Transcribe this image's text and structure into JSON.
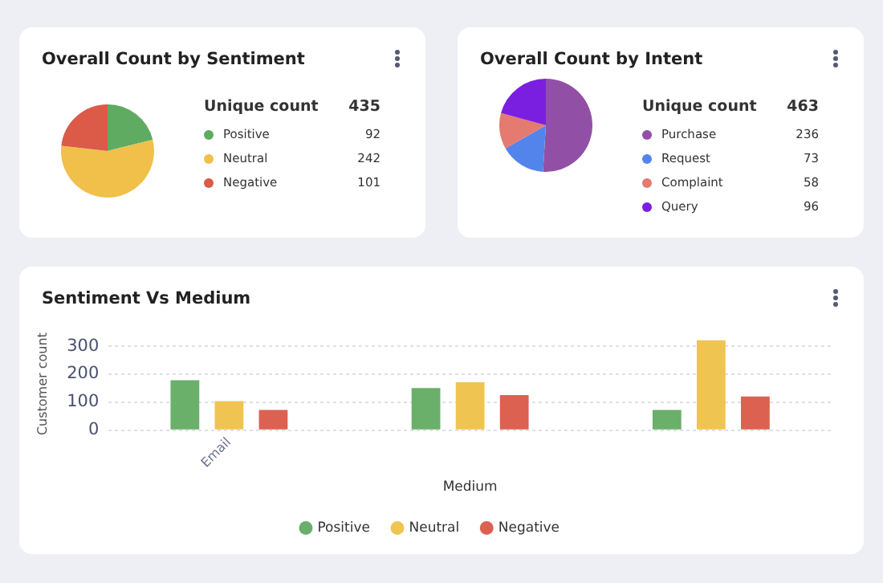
{
  "chart_data": [
    {
      "type": "pie",
      "title": "Overall Count by Sentiment",
      "categories": [
        "Positive",
        "Neutral",
        "Negative"
      ],
      "values": [
        92,
        242,
        101
      ],
      "colors": [
        "#5fab62",
        "#f0c04a",
        "#db5a48"
      ],
      "legend": "right",
      "data_labels": true,
      "annotations": [
        "Unique count",
        "435"
      ]
    },
    {
      "type": "pie",
      "title": "Overall Count by Intent",
      "categories": [
        "Purchase",
        "Request",
        "Complaint",
        "Query"
      ],
      "values": [
        236,
        73,
        58,
        96
      ],
      "colors": [
        "#9150a5",
        "#5284ec",
        "#e57a70",
        "#7a1fe0"
      ],
      "legend": "right",
      "data_labels": true,
      "annotations": [
        "Unique count",
        "463"
      ]
    },
    {
      "type": "bar",
      "title": "Sentiment Vs Medium",
      "xlabel": "Medium",
      "ylabel": "Customer count",
      "categories": [
        "Email",
        null,
        null
      ],
      "series": [
        {
          "name": "Positive",
          "color": "#6aaf6a",
          "values": [
            178,
            150,
            72
          ]
        },
        {
          "name": "Neutral",
          "color": "#efc451",
          "values": [
            104,
            171,
            321
          ]
        },
        {
          "name": "Negative",
          "color": "#dc6150",
          "values": [
            72,
            125,
            120
          ]
        }
      ],
      "ylim": [
        0,
        330
      ],
      "yticks": [
        0,
        100,
        200,
        300
      ],
      "grid": "y",
      "legend": "bottom"
    }
  ]
}
